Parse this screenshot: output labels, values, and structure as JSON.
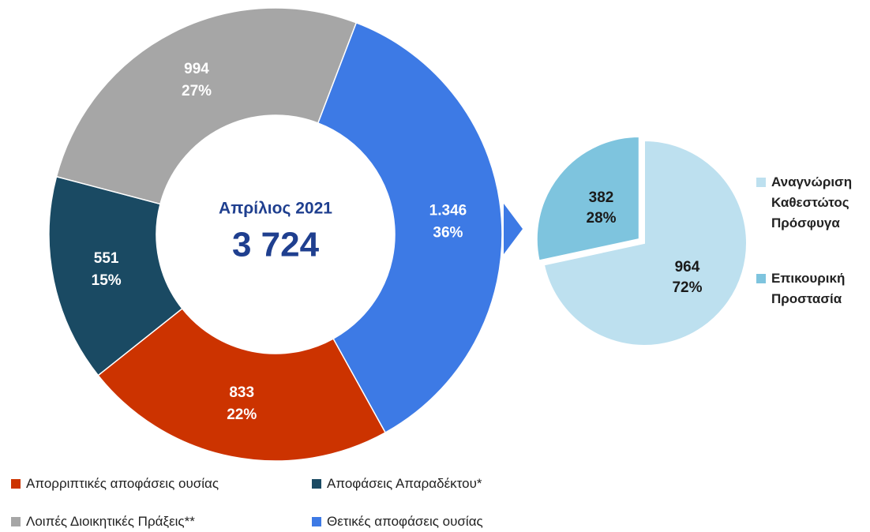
{
  "chart_data": [
    {
      "type": "donut",
      "center_title": "Απρίλιος 2021",
      "center_value": "3 724",
      "categories": [
        "Απορριπτικές αποφάσεις ουσίας",
        "Αποφάσεις Απαραδέκτου*",
        "Λοιπές Διοικητικές Πράξεις**",
        "Θετικές αποφάσεις ουσίας"
      ],
      "values": [
        833,
        551,
        994,
        1346
      ],
      "value_labels": [
        "833",
        "551",
        "994",
        "1.346"
      ],
      "percents": [
        22,
        15,
        27,
        36
      ],
      "percent_labels": [
        "22%",
        "15%",
        "27%",
        "36%"
      ],
      "colors": [
        "#cc3300",
        "#1a4a63",
        "#a6a6a6",
        "#3d7ae5"
      ]
    },
    {
      "type": "pie",
      "categories": [
        "Αναγνώριση Καθεστώτος Πρόσφυγα",
        "Επικουρική Προστασία"
      ],
      "values": [
        964,
        382
      ],
      "percents": [
        72,
        28
      ],
      "percent_labels": [
        "72%",
        "28%"
      ],
      "colors": [
        "#bde0ef",
        "#7ec4de"
      ],
      "exploded": 1
    }
  ]
}
